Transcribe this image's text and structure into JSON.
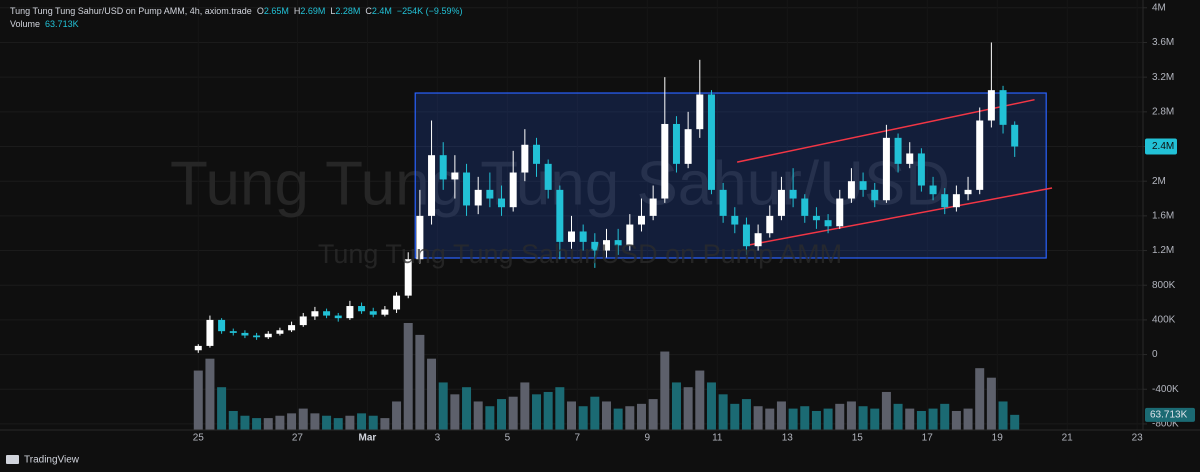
{
  "header": {
    "symbol": "Tung Tung Tung Sahur/USD on Pump AMM, 4h, axiom.trade",
    "ohlc": [
      {
        "key": "O",
        "value": "2.65M"
      },
      {
        "key": "H",
        "value": "2.69M"
      },
      {
        "key": "L",
        "value": "2.28M"
      },
      {
        "key": "C",
        "value": "2.4M"
      }
    ],
    "change": "−254K (−9.59%)"
  },
  "watermark": {
    "large": "Tung Tung Tung Sahur/USD",
    "small": "Tung Tung Tung Sahur/USD on Pump AMM"
  },
  "footer": {
    "brand": "TradingView"
  },
  "chart_data": {
    "type": "candlestick",
    "grid": true,
    "up_color": "#ffffff",
    "down_color": "#22c1d6",
    "current_price_label": "2.4M",
    "xlim": [
      -17,
      81
    ],
    "xticks": [
      {
        "value": 0,
        "label": "25"
      },
      {
        "value": 8.5,
        "label": "27"
      },
      {
        "value": 14.5,
        "label": "Mar"
      },
      {
        "value": 20.5,
        "label": "3"
      },
      {
        "value": 26.5,
        "label": "5"
      },
      {
        "value": 32.5,
        "label": "7"
      },
      {
        "value": 38.5,
        "label": "9"
      },
      {
        "value": 44.5,
        "label": "11"
      },
      {
        "value": 50.5,
        "label": "13"
      },
      {
        "value": 56.5,
        "label": "15"
      },
      {
        "value": 62.5,
        "label": "17"
      },
      {
        "value": 68.5,
        "label": "19"
      },
      {
        "value": 74.5,
        "label": "21"
      },
      {
        "value": 80.5,
        "label": "23"
      }
    ],
    "ylim": [
      -870000,
      4090000
    ],
    "yticks": [
      {
        "value": 4000000,
        "label": "4M"
      },
      {
        "value": 3600000,
        "label": "3.6M"
      },
      {
        "value": 3200000,
        "label": "3.2M"
      },
      {
        "value": 2800000,
        "label": "2.8M"
      },
      {
        "value": 2400000,
        "label": "2.4M"
      },
      {
        "value": 2000000,
        "label": "2M"
      },
      {
        "value": 1600000,
        "label": "1.6M"
      },
      {
        "value": 1200000,
        "label": "1.2M"
      },
      {
        "value": 800000,
        "label": "800K"
      },
      {
        "value": 400000,
        "label": "400K"
      },
      0,
      {
        "value": -400000,
        "label": "-400K"
      },
      {
        "value": -800000,
        "label": "-800K"
      }
    ],
    "series": [
      {
        "open": [
          50000,
          100000,
          400000,
          270000,
          250000,
          220000,
          200000,
          240000,
          280000,
          340000,
          440000,
          500000,
          450000,
          420000,
          560000,
          500000,
          460000,
          520000,
          680000,
          1100000,
          1600000,
          2300000,
          2020000,
          2100000,
          1720000,
          1900000,
          1800000,
          1700000,
          2100000,
          2420000,
          2200000,
          1900000,
          1300000,
          1420000,
          1300000,
          1200000,
          1320000,
          1260000,
          1500000,
          1600000,
          1800000,
          2660000,
          2200000,
          2600000,
          3000000,
          1900000,
          1600000,
          1500000,
          1250000,
          1400000,
          1600000,
          1900000,
          1800000,
          1600000,
          1550000,
          1480000,
          1800000,
          2000000,
          1900000,
          1780000,
          2500000,
          2200000,
          2320000,
          1950000,
          1850000,
          1700000,
          1850000,
          1900000,
          2700000,
          3050000,
          2650000
        ],
        "high": [
          120000,
          450000,
          420000,
          300000,
          280000,
          250000,
          270000,
          310000,
          380000,
          480000,
          550000,
          530000,
          480000,
          620000,
          600000,
          540000,
          560000,
          720000,
          1180000,
          1900000,
          2700000,
          2450000,
          2300000,
          2200000,
          2050000,
          2100000,
          1950000,
          2350000,
          2600000,
          2500000,
          2250000,
          1950000,
          1600000,
          1500000,
          1400000,
          1450000,
          1450000,
          1620000,
          1800000,
          1950000,
          3200000,
          2750000,
          2800000,
          3400000,
          3050000,
          1980000,
          1700000,
          1580000,
          1500000,
          1720000,
          2050000,
          2150000,
          1850000,
          1700000,
          1620000,
          1900000,
          2150000,
          2100000,
          1980000,
          2650000,
          2550000,
          2450000,
          2380000,
          2050000,
          1920000,
          1950000,
          2050000,
          2850000,
          3600000,
          3100000,
          2690000
        ],
        "low": [
          20000,
          80000,
          240000,
          220000,
          190000,
          170000,
          180000,
          220000,
          260000,
          320000,
          400000,
          420000,
          380000,
          400000,
          470000,
          430000,
          440000,
          480000,
          650000,
          1050000,
          1500000,
          1900000,
          1800000,
          1600000,
          1620000,
          1700000,
          1600000,
          1650000,
          2000000,
          2050000,
          1800000,
          1100000,
          1220000,
          1200000,
          1000000,
          1120000,
          1150000,
          1200000,
          1420000,
          1550000,
          1750000,
          2100000,
          2150000,
          2500000,
          1850000,
          1520000,
          1400000,
          1150000,
          1200000,
          1350000,
          1550000,
          1700000,
          1520000,
          1450000,
          1400000,
          1450000,
          1750000,
          1820000,
          1700000,
          1750000,
          2100000,
          2150000,
          1880000,
          1780000,
          1620000,
          1650000,
          1780000,
          1850000,
          2620000,
          2550000,
          2280000
        ],
        "close": [
          100000,
          400000,
          270000,
          250000,
          220000,
          200000,
          240000,
          280000,
          340000,
          440000,
          500000,
          450000,
          420000,
          560000,
          500000,
          460000,
          520000,
          680000,
          1100000,
          1600000,
          2300000,
          2020000,
          2100000,
          1720000,
          1900000,
          1800000,
          1700000,
          2100000,
          2420000,
          2200000,
          1900000,
          1300000,
          1420000,
          1300000,
          1200000,
          1320000,
          1260000,
          1500000,
          1600000,
          1800000,
          2660000,
          2200000,
          2600000,
          3000000,
          1900000,
          1600000,
          1500000,
          1250000,
          1400000,
          1600000,
          1900000,
          1800000,
          1600000,
          1550000,
          1480000,
          1800000,
          2000000,
          1900000,
          1780000,
          2500000,
          2200000,
          2320000,
          1950000,
          1850000,
          1700000,
          1850000,
          1900000,
          2700000,
          3050000,
          2650000,
          2400000
        ]
      }
    ],
    "volume": {
      "name": "Volume",
      "current_value_label": "63.713K",
      "up_color": "#5d606b",
      "down_color": "#1b6a73",
      "values": [
        250000,
        300000,
        180000,
        80000,
        60000,
        50000,
        50000,
        60000,
        70000,
        90000,
        70000,
        60000,
        50000,
        60000,
        70000,
        60000,
        50000,
        120000,
        450000,
        400000,
        300000,
        200000,
        150000,
        180000,
        120000,
        100000,
        130000,
        140000,
        200000,
        150000,
        160000,
        180000,
        120000,
        100000,
        140000,
        120000,
        90000,
        100000,
        110000,
        130000,
        330000,
        200000,
        180000,
        250000,
        200000,
        150000,
        110000,
        130000,
        100000,
        90000,
        120000,
        90000,
        100000,
        80000,
        90000,
        110000,
        120000,
        100000,
        90000,
        160000,
        110000,
        90000,
        80000,
        90000,
        110000,
        80000,
        90000,
        260000,
        220000,
        120000,
        63713
      ]
    },
    "drawings": [
      {
        "type": "rectangle",
        "x": [
          18.6,
          72.7
        ],
        "y": [
          1114000,
          3017000
        ],
        "color": "#2962ff"
      },
      {
        "type": "trend-line",
        "x": [
          46.2,
          71.7
        ],
        "y": [
          2220000,
          2940000
        ],
        "color": "#f23645"
      },
      {
        "type": "trend-line",
        "x": [
          47.2,
          73.2
        ],
        "y": [
          1264000,
          1921000
        ],
        "color": "#f23645"
      }
    ]
  }
}
